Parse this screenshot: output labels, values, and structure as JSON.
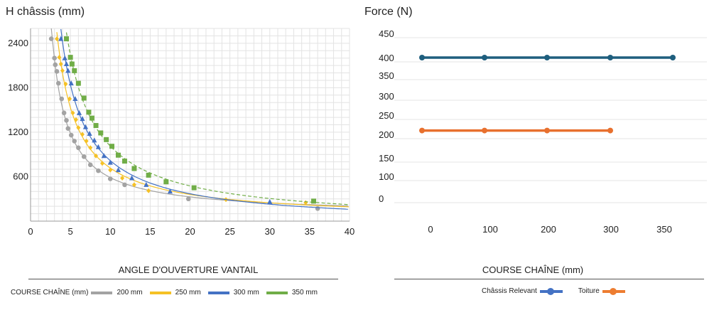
{
  "chart_data": [
    {
      "type": "scatter",
      "ylabel": "H châssis (mm)",
      "xlabel": "ANGLE D'OUVERTURE VANTAIL",
      "xlim": [
        0,
        40
      ],
      "ylim": [
        0,
        2600
      ],
      "x_ticks": [
        "0",
        "5",
        "10",
        "15",
        "20",
        "25",
        "30",
        "35",
        "40"
      ],
      "y_ticks": [
        "600",
        "1200",
        "1800",
        "2400"
      ],
      "grid": true,
      "legend_title": "COURSE CHAÎNE (mm)",
      "legend_position": "bottom",
      "series": [
        {
          "name": "200 mm",
          "color": "#a3a3a3",
          "marker": "circle",
          "x": [
            2.6,
            3.0,
            3.1,
            3.3,
            3.5,
            3.9,
            4.2,
            4.5,
            4.7,
            5.1,
            5.5,
            6.0,
            6.7,
            7.5,
            8.5,
            10.0,
            11.8,
            19.8,
            36.0
          ],
          "y": [
            2460,
            2200,
            2110,
            2020,
            1860,
            1650,
            1460,
            1360,
            1250,
            1160,
            1080,
            990,
            870,
            760,
            680,
            570,
            490,
            300,
            170
          ]
        },
        {
          "name": "250 mm",
          "color": "#f5c125",
          "marker": "diamond",
          "x": [
            3.3,
            3.6,
            3.8,
            4.0,
            4.4,
            4.9,
            5.3,
            5.7,
            6.0,
            6.5,
            7.0,
            7.5,
            8.2,
            9.0,
            10.0,
            11.5,
            13.0,
            14.8,
            24.5,
            34.5
          ],
          "y": [
            2460,
            2210,
            2120,
            2030,
            1850,
            1650,
            1460,
            1370,
            1260,
            1170,
            1080,
            990,
            880,
            780,
            690,
            580,
            490,
            410,
            290,
            250
          ]
        },
        {
          "name": "300 mm",
          "color": "#4472c4",
          "marker": "triangle",
          "x": [
            3.8,
            4.3,
            4.5,
            4.7,
            5.1,
            5.6,
            6.1,
            6.5,
            6.9,
            7.4,
            8.0,
            8.5,
            9.2,
            10.0,
            11.0,
            12.7,
            14.5,
            17.5,
            30.0
          ],
          "y": [
            2460,
            2200,
            2120,
            2030,
            1860,
            1650,
            1460,
            1380,
            1270,
            1180,
            1090,
            1000,
            880,
            790,
            690,
            580,
            490,
            400,
            260
          ]
        },
        {
          "name": "350 mm",
          "color": "#70ad47",
          "marker": "square",
          "x": [
            4.5,
            5.0,
            5.2,
            5.5,
            6.0,
            6.7,
            7.3,
            7.7,
            8.2,
            8.8,
            9.5,
            10.2,
            11.0,
            11.8,
            13.0,
            14.8,
            17.0,
            20.5,
            35.5
          ],
          "y": [
            2460,
            2210,
            2120,
            2030,
            1860,
            1660,
            1470,
            1390,
            1290,
            1190,
            1100,
            1010,
            890,
            810,
            710,
            620,
            530,
            450,
            270
          ]
        }
      ]
    },
    {
      "type": "line",
      "ylabel": "Force (N)",
      "xlabel": "COURSE CHAÎNE (mm)",
      "x_ticks": [
        "0",
        "100",
        "200",
        "300",
        "350"
      ],
      "y_ticks": [
        "0",
        "100",
        "150",
        "200",
        "250",
        "300",
        "350",
        "400",
        "450"
      ],
      "grid": true,
      "legend_position": "bottom",
      "series": [
        {
          "name": "Châssis Relevant",
          "color": "#1f5f7e",
          "x": [
            0,
            100,
            200,
            300,
            350
          ],
          "y": [
            400,
            400,
            400,
            400,
            400
          ]
        },
        {
          "name": "Toiture",
          "color": "#e8702e",
          "x": [
            0,
            100,
            200,
            300
          ],
          "y": [
            210,
            210,
            210,
            210
          ]
        }
      ]
    }
  ]
}
